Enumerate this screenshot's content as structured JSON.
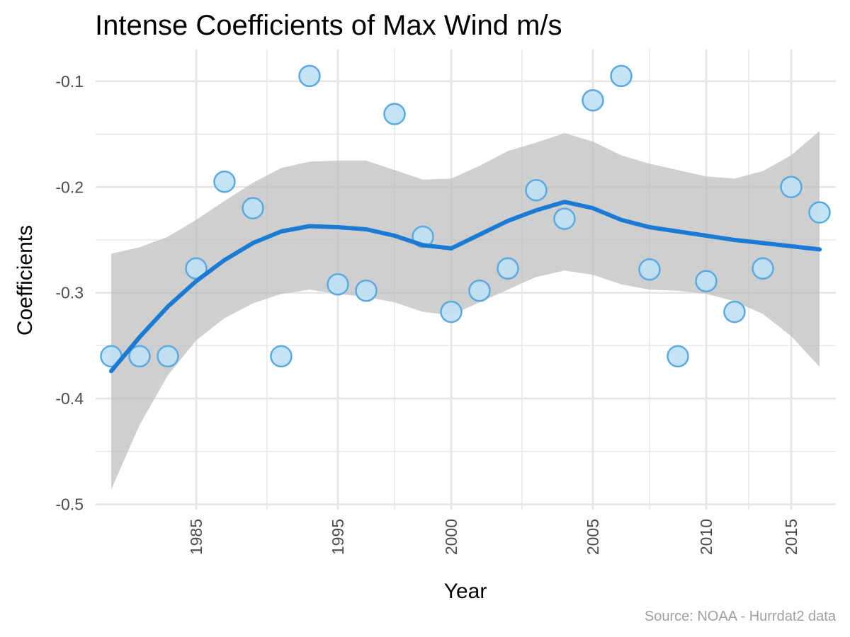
{
  "chart_data": {
    "type": "scatter",
    "title": "Intense Coefficients of Max Wind m/s",
    "xlabel": "Year",
    "ylabel": "Coefficients",
    "caption": "Source: NOAA - Hurrdat2 data",
    "x_tick_labels": [
      "1985",
      "1995",
      "2000",
      "2005",
      "2010",
      "2015"
    ],
    "y_tick_labels": [
      "-0.1",
      "-0.2",
      "-0.3",
      "-0.4",
      "-0.5"
    ],
    "y_ticks": [
      -0.1,
      -0.2,
      -0.3,
      -0.4,
      -0.5
    ],
    "ylim": [
      -0.505,
      -0.07
    ],
    "grid": true,
    "legend": "none",
    "colors": {
      "points_fill": "#bfe0f5",
      "points_stroke": "#5aaae0",
      "line": "#1a7ad4",
      "band": "#bdbdbd",
      "grid": "#e5e5e5"
    },
    "points": [
      {
        "label": "1980",
        "y": -0.36
      },
      {
        "label": "1982",
        "y": -0.36
      },
      {
        "label": "1983",
        "y": -0.36
      },
      {
        "label": "1985",
        "y": -0.277
      },
      {
        "label": "1986",
        "y": -0.195
      },
      {
        "label": "1987",
        "y": -0.22
      },
      {
        "label": "1989",
        "y": -0.36
      },
      {
        "label": "1991",
        "y": -0.095
      },
      {
        "label": "1995",
        "y": -0.292
      },
      {
        "label": "1996",
        "y": -0.298
      },
      {
        "label": "1997",
        "y": -0.131
      },
      {
        "label": "1999",
        "y": -0.247
      },
      {
        "label": "2000",
        "y": -0.318
      },
      {
        "label": "2001",
        "y": -0.298
      },
      {
        "label": "2002",
        "y": -0.277
      },
      {
        "label": "2003",
        "y": -0.203
      },
      {
        "label": "2004",
        "y": -0.23
      },
      {
        "label": "2005",
        "y": -0.118
      },
      {
        "label": "2006",
        "y": -0.095
      },
      {
        "label": "2007",
        "y": -0.278
      },
      {
        "label": "2009",
        "y": -0.36
      },
      {
        "label": "2010",
        "y": -0.289
      },
      {
        "label": "2011",
        "y": -0.318
      },
      {
        "label": "2013",
        "y": -0.277
      },
      {
        "label": "2015",
        "y": -0.2
      },
      {
        "label": "2016",
        "y": -0.224
      }
    ],
    "smooth": {
      "fit": [
        -0.374,
        -0.342,
        -0.313,
        -0.289,
        -0.269,
        -0.253,
        -0.242,
        -0.237,
        -0.238,
        -0.24,
        -0.246,
        -0.255,
        -0.258,
        -0.245,
        -0.232,
        -0.222,
        -0.214,
        -0.22,
        -0.231,
        -0.238,
        -0.242,
        -0.246,
        -0.25,
        -0.253,
        -0.256,
        -0.259
      ],
      "lower": [
        -0.486,
        -0.425,
        -0.378,
        -0.345,
        -0.324,
        -0.31,
        -0.301,
        -0.297,
        -0.301,
        -0.304,
        -0.309,
        -0.318,
        -0.321,
        -0.309,
        -0.297,
        -0.285,
        -0.279,
        -0.283,
        -0.292,
        -0.297,
        -0.298,
        -0.301,
        -0.308,
        -0.32,
        -0.341,
        -0.37
      ],
      "upper": [
        -0.263,
        -0.257,
        -0.247,
        -0.231,
        -0.213,
        -0.196,
        -0.182,
        -0.176,
        -0.175,
        -0.175,
        -0.184,
        -0.193,
        -0.192,
        -0.18,
        -0.166,
        -0.158,
        -0.149,
        -0.157,
        -0.17,
        -0.178,
        -0.184,
        -0.19,
        -0.192,
        -0.185,
        -0.17,
        -0.147
      ]
    }
  }
}
